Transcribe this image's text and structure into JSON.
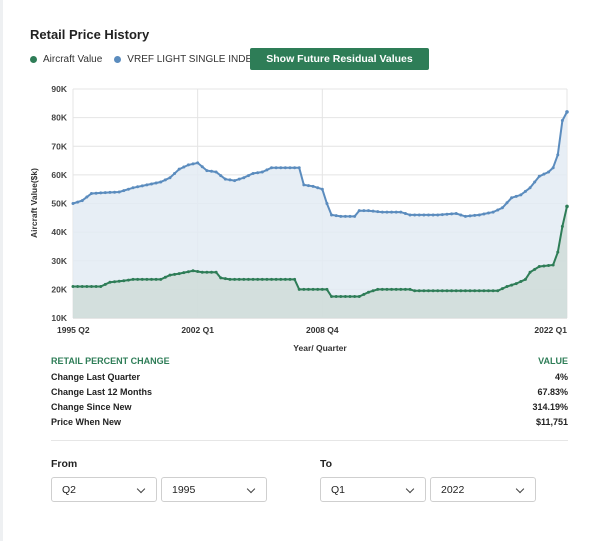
{
  "title": "Retail Price History",
  "legend": [
    {
      "label": "Aircraft Value",
      "color": "#2e7d57"
    },
    {
      "label": "VREF LIGHT SINGLE INDEX",
      "color": "#5b8cbe"
    }
  ],
  "future_button_label": "Show Future Residual Values",
  "chart_data": {
    "type": "area",
    "ylabel": "Aircraft Value($k)",
    "xlabel": "Year/ Quarter",
    "ylim": [
      10000,
      90000
    ],
    "y_ticks": [
      "10K",
      "20K",
      "30K",
      "40K",
      "50K",
      "60K",
      "70K",
      "80K",
      "90K"
    ],
    "x_ticks": [
      "1995 Q2",
      "2002 Q1",
      "2008 Q4",
      "2022 Q1"
    ],
    "x_range": [
      1995.25,
      2022.0
    ],
    "grid": true,
    "series": [
      {
        "name": "VREF LIGHT SINGLE INDEX",
        "color": "#5b8cbe",
        "fill": "#e3ebf3",
        "points": [
          [
            1995.25,
            50000
          ],
          [
            1995.75,
            51000
          ],
          [
            1996.25,
            53500
          ],
          [
            1997.0,
            53800
          ],
          [
            1997.75,
            54000
          ],
          [
            1998.5,
            55500
          ],
          [
            1999.25,
            56500
          ],
          [
            2000.0,
            57500
          ],
          [
            2000.5,
            59000
          ],
          [
            2001.0,
            62000
          ],
          [
            2001.5,
            63500
          ],
          [
            2002.0,
            64200
          ],
          [
            2002.5,
            61500
          ],
          [
            2003.0,
            61000
          ],
          [
            2003.5,
            58500
          ],
          [
            2004.0,
            58000
          ],
          [
            2004.5,
            59000
          ],
          [
            2005.0,
            60500
          ],
          [
            2005.5,
            61000
          ],
          [
            2006.0,
            62500
          ],
          [
            2006.5,
            62500
          ],
          [
            2007.5,
            62500
          ],
          [
            2007.75,
            56500
          ],
          [
            2008.25,
            56000
          ],
          [
            2008.75,
            55000
          ],
          [
            2009.0,
            50000
          ],
          [
            2009.25,
            46000
          ],
          [
            2009.75,
            45500
          ],
          [
            2010.5,
            45500
          ],
          [
            2010.75,
            47500
          ],
          [
            2011.25,
            47500
          ],
          [
            2012.0,
            47000
          ],
          [
            2013.0,
            47000
          ],
          [
            2013.5,
            46000
          ],
          [
            2015.0,
            46000
          ],
          [
            2016.0,
            46500
          ],
          [
            2016.5,
            45500
          ],
          [
            2017.25,
            46000
          ],
          [
            2018.0,
            47000
          ],
          [
            2018.5,
            48500
          ],
          [
            2019.0,
            52000
          ],
          [
            2019.5,
            53000
          ],
          [
            2020.0,
            55500
          ],
          [
            2020.5,
            59500
          ],
          [
            2021.0,
            61000
          ],
          [
            2021.25,
            62500
          ],
          [
            2021.5,
            67000
          ],
          [
            2021.75,
            79000
          ],
          [
            2022.0,
            82000
          ]
        ]
      },
      {
        "name": "Aircraft Value",
        "color": "#2e7d57",
        "fill": "#cfdcd8",
        "points": [
          [
            1995.25,
            21000
          ],
          [
            1996.75,
            21000
          ],
          [
            1997.25,
            22500
          ],
          [
            1998.0,
            23000
          ],
          [
            1998.5,
            23500
          ],
          [
            2000.0,
            23500
          ],
          [
            2000.5,
            25000
          ],
          [
            2001.0,
            25500
          ],
          [
            2001.75,
            26500
          ],
          [
            2002.25,
            26000
          ],
          [
            2003.0,
            26000
          ],
          [
            2003.25,
            24000
          ],
          [
            2003.75,
            23500
          ],
          [
            2005.0,
            23500
          ],
          [
            2007.25,
            23500
          ],
          [
            2007.5,
            20000
          ],
          [
            2009.0,
            20000
          ],
          [
            2009.25,
            17500
          ],
          [
            2010.75,
            17500
          ],
          [
            2011.25,
            19000
          ],
          [
            2011.75,
            20000
          ],
          [
            2013.5,
            20000
          ],
          [
            2013.75,
            19500
          ],
          [
            2018.25,
            19500
          ],
          [
            2018.75,
            21000
          ],
          [
            2019.25,
            22000
          ],
          [
            2019.75,
            23500
          ],
          [
            2020.0,
            26000
          ],
          [
            2020.5,
            28000
          ],
          [
            2021.25,
            28500
          ],
          [
            2021.5,
            33000
          ],
          [
            2021.75,
            42000
          ],
          [
            2022.0,
            49000
          ]
        ]
      }
    ]
  },
  "table": {
    "header_label": "RETAIL PERCENT CHANGE",
    "header_value": "VALUE",
    "rows": [
      {
        "label": "Change Last Quarter",
        "value": "4%"
      },
      {
        "label": "Change Last 12 Months",
        "value": "67.83%"
      },
      {
        "label": "Change Since New",
        "value": "314.19%"
      },
      {
        "label": "Price When New",
        "value": "$11,751"
      }
    ]
  },
  "from": {
    "label": "From",
    "quarter": "Q2",
    "year": "1995"
  },
  "to": {
    "label": "To",
    "quarter": "Q1",
    "year": "2022"
  }
}
